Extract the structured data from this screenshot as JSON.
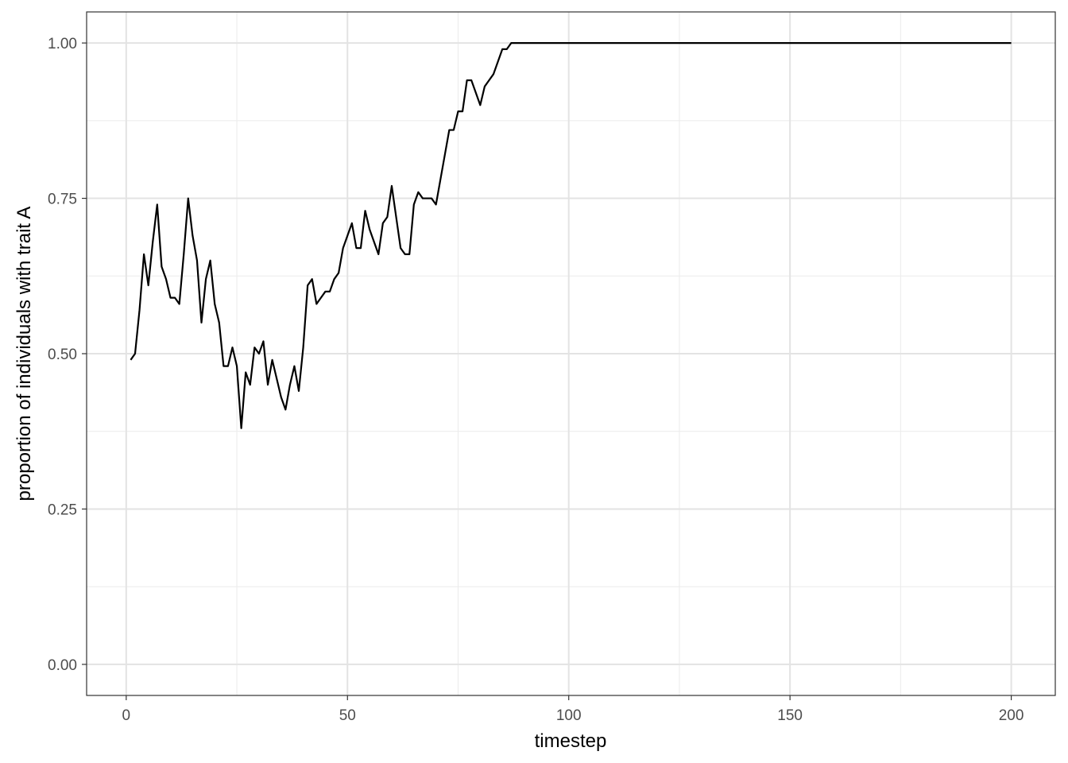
{
  "chart_data": {
    "type": "line",
    "title": "",
    "xlabel": "timestep",
    "ylabel": "proportion of individuals with trait A",
    "xlim": [
      -8.95,
      209.95
    ],
    "ylim": [
      -0.05,
      1.05
    ],
    "x_ticks": [
      0,
      50,
      100,
      150,
      200
    ],
    "x_tick_labels": [
      "0",
      "50",
      "100",
      "150",
      "200"
    ],
    "x_minor_ticks": [
      25,
      75,
      125,
      175
    ],
    "y_ticks": [
      0,
      0.25,
      0.5,
      0.75,
      1
    ],
    "y_tick_labels": [
      "0.00",
      "0.25",
      "0.50",
      "0.75",
      "1.00"
    ],
    "y_minor_ticks": [
      0.125,
      0.375,
      0.625,
      0.875
    ],
    "grid": true,
    "legend": "none",
    "series": [
      {
        "color": "#000000",
        "x": [
          1,
          2,
          3,
          4,
          5,
          6,
          7,
          8,
          9,
          10,
          11,
          12,
          13,
          14,
          15,
          16,
          17,
          18,
          19,
          20,
          21,
          22,
          23,
          24,
          25,
          26,
          27,
          28,
          29,
          30,
          31,
          32,
          33,
          34,
          35,
          36,
          37,
          38,
          39,
          40,
          41,
          42,
          43,
          44,
          45,
          46,
          47,
          48,
          49,
          50,
          51,
          52,
          53,
          54,
          55,
          56,
          57,
          58,
          59,
          60,
          61,
          62,
          63,
          64,
          65,
          66,
          67,
          68,
          69,
          70,
          71,
          72,
          73,
          74,
          75,
          76,
          77,
          78,
          79,
          80,
          81,
          82,
          83,
          84,
          85,
          86,
          87,
          88,
          200
        ],
        "y": [
          0.49,
          0.5,
          0.57,
          0.66,
          0.61,
          0.68,
          0.74,
          0.64,
          0.62,
          0.59,
          0.59,
          0.58,
          0.66,
          0.75,
          0.69,
          0.65,
          0.55,
          0.62,
          0.65,
          0.58,
          0.55,
          0.48,
          0.48,
          0.51,
          0.48,
          0.38,
          0.47,
          0.45,
          0.51,
          0.5,
          0.52,
          0.45,
          0.49,
          0.46,
          0.43,
          0.41,
          0.45,
          0.48,
          0.44,
          0.51,
          0.61,
          0.62,
          0.58,
          0.59,
          0.6,
          0.6,
          0.62,
          0.63,
          0.67,
          0.69,
          0.71,
          0.67,
          0.67,
          0.73,
          0.7,
          0.68,
          0.66,
          0.71,
          0.72,
          0.77,
          0.72,
          0.67,
          0.66,
          0.66,
          0.74,
          0.76,
          0.75,
          0.75,
          0.75,
          0.74,
          0.78,
          0.82,
          0.86,
          0.86,
          0.89,
          0.89,
          0.94,
          0.94,
          0.92,
          0.9,
          0.93,
          0.94,
          0.95,
          0.97,
          0.99,
          0.99,
          1.0,
          1.0,
          1.0
        ]
      }
    ]
  }
}
